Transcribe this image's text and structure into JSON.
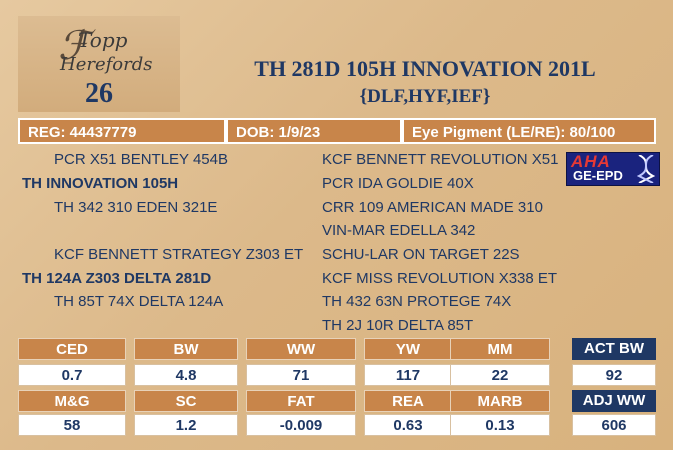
{
  "logo": {
    "line1": "Topp",
    "line2": "Herefords",
    "lot_number": "26"
  },
  "title": "TH 281D 105H INNOVATION 201L",
  "subtitle": "{DLF,HYF,IEF}",
  "info": {
    "reg": "REG: 44437779",
    "dob": "DOB: 1/9/23",
    "eye": "Eye Pigment (LE/RE): 80/100"
  },
  "pedigree": {
    "sire": "TH INNOVATION 105H",
    "sire_sire": "PCR X51 BENTLEY 454B",
    "sire_sire_sire": "KCF BENNETT REVOLUTION X51",
    "sire_sire_dam": "PCR IDA GOLDIE 40X",
    "sire_dam": "TH 342 310 EDEN 321E",
    "sire_dam_sire": "CRR 109 AMERICAN MADE 310",
    "sire_dam_dam": "VIN-MAR EDELLA 342",
    "dam": "TH 124A Z303 DELTA 281D",
    "dam_sire": "KCF BENNETT STRATEGY Z303 ET",
    "dam_sire_sire": "SCHU-LAR ON TARGET 22S",
    "dam_sire_dam": "KCF MISS REVOLUTION X338 ET",
    "dam_dam": "TH 85T 74X DELTA 124A",
    "dam_dam_sire": "TH 432 63N PROTEGE 74X",
    "dam_dam_dam": "TH 2J 10R DELTA 85T"
  },
  "badge": {
    "line1": "AHA",
    "line2": "GE-EPD"
  },
  "epds": {
    "row1": [
      {
        "label": "CED",
        "value": "0.7"
      },
      {
        "label": "BW",
        "value": "4.8"
      },
      {
        "label": "WW",
        "value": "71"
      },
      {
        "label": "YW",
        "value": "117"
      },
      {
        "label": "MM",
        "value": "22"
      }
    ],
    "row2": [
      {
        "label": "M&G",
        "value": "58"
      },
      {
        "label": "SC",
        "value": "1.2"
      },
      {
        "label": "FAT",
        "value": "-0.009"
      },
      {
        "label": "REA",
        "value": "0.63"
      },
      {
        "label": "MARB",
        "value": "0.13"
      }
    ],
    "actual": [
      {
        "label": "ACT BW",
        "value": "92"
      },
      {
        "label": "ADJ WW",
        "value": "606"
      }
    ]
  },
  "colors": {
    "accent": "#c8854a",
    "navy": "#1f3864",
    "background": "#dcb98a"
  }
}
